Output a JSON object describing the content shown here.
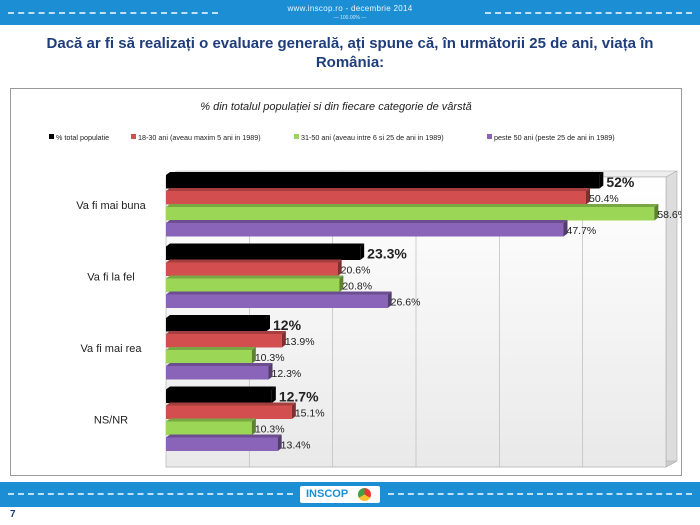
{
  "header": {
    "site": "www.inscop.ro   -   decembrie 2014",
    "sub": "— 100.00% —"
  },
  "slide_title": "Dacă ar fi să realizați o evaluare generală, ați spune că, în următorii 25 de ani, viața în România:",
  "footer": {
    "logo_text": "INSCOP",
    "page_number": "7"
  },
  "colors": {
    "total": "#000000",
    "age18": "#d34f4f",
    "age31": "#9bd657",
    "age50": "#8a64b8",
    "bar_bg": "#1b8ed4"
  },
  "chart_data": {
    "type": "bar",
    "orientation": "horizontal",
    "title": "% din totalul populației si din fiecare categorie de vârstă",
    "categories": [
      "Va fi mai buna",
      "Va fi la fel",
      "Va fi mai rea",
      "NS/NR"
    ],
    "series": [
      {
        "name": "% total populatie",
        "key": "total",
        "values": [
          52,
          23.3,
          12,
          12.7
        ],
        "labels": [
          "52%",
          "23.3%",
          "12%",
          "12.7%"
        ]
      },
      {
        "name": "18-30 ani (aveau maxim 5 ani in 1989)",
        "key": "age18",
        "values": [
          50.4,
          20.6,
          13.9,
          15.1
        ],
        "labels": [
          "50.4%",
          "20.6%",
          "13.9%",
          "15.1%"
        ]
      },
      {
        "name": "31-50 ani (aveau intre 6 si 25 de ani in 1989)",
        "key": "age31",
        "values": [
          58.6,
          20.8,
          10.3,
          10.3
        ],
        "labels": [
          "58.6%",
          "20.8%",
          "10.3%",
          "10.3%"
        ]
      },
      {
        "name": "peste 50 ani (peste 25 de ani in 1989)",
        "key": "age50",
        "values": [
          47.7,
          26.6,
          12.3,
          13.4
        ],
        "labels": [
          "47.7%",
          "26.6%",
          "12.3%",
          "13.4%"
        ]
      }
    ],
    "xlim": [
      0,
      60
    ],
    "grid": true,
    "legend": "top"
  }
}
